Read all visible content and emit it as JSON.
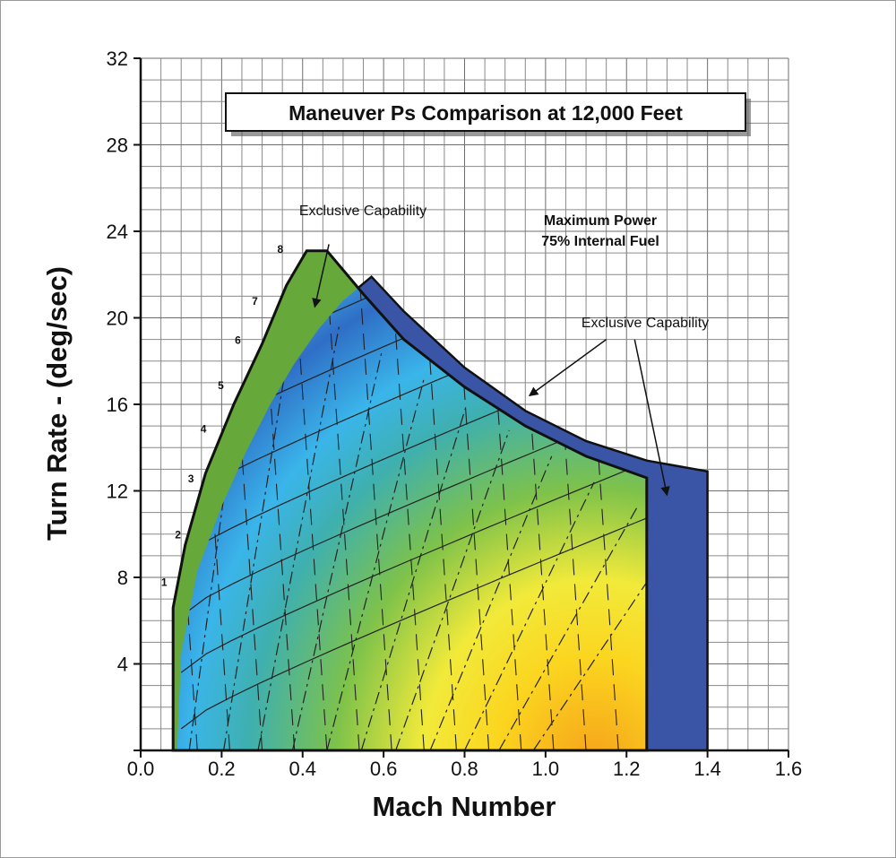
{
  "chart_data": {
    "type": "area",
    "title": "Maneuver Ps Comparison at 12,000 Feet",
    "xlabel": "Mach Number",
    "ylabel": "Turn Rate - (deg/sec)",
    "xlim": [
      0.0,
      1.6
    ],
    "ylim": [
      0,
      32
    ],
    "x_ticks": [
      "0.0",
      "0.2",
      "0.4",
      "0.6",
      "0.8",
      "1.0",
      "1.2",
      "1.4",
      "1.6"
    ],
    "y_ticks": [
      "4",
      "8",
      "12",
      "16",
      "20",
      "24",
      "28",
      "32"
    ],
    "grid": true,
    "annotations": {
      "condition_line1": "Maximum Power",
      "condition_line2": "75% Internal Fuel",
      "exclusive_left": "Exclusive Capability",
      "exclusive_right": "Exclusive Capability"
    },
    "load_factor_labels": [
      "1",
      "2",
      "3",
      "4",
      "5",
      "6",
      "7",
      "8"
    ],
    "series": [
      {
        "color": "#66a93a",
        "x": [
          0.08,
          0.08,
          0.11,
          0.16,
          0.23,
          0.3,
          0.36,
          0.41,
          0.46,
          0.55,
          0.65,
          0.8,
          0.95,
          1.1,
          1.25,
          1.25
        ],
        "y": [
          0,
          6.6,
          9.5,
          12.8,
          16.0,
          18.8,
          21.5,
          23.1,
          23.1,
          21.1,
          19.0,
          16.8,
          15.0,
          13.6,
          12.6,
          0
        ]
      },
      {
        "color": "#3a55a6",
        "x": [
          0.09,
          0.1,
          0.14,
          0.2,
          0.26,
          0.32,
          0.38,
          0.44,
          0.5,
          0.57,
          0.65,
          0.8,
          0.95,
          1.1,
          1.25,
          1.4,
          1.4
        ],
        "y": [
          0,
          4.5,
          8.3,
          11.3,
          13.8,
          16.0,
          17.9,
          19.5,
          20.8,
          21.9,
          20.3,
          17.7,
          15.7,
          14.3,
          13.4,
          12.9,
          0
        ]
      }
    ],
    "ps_contours": 11,
    "load_factor_lines": 7
  }
}
